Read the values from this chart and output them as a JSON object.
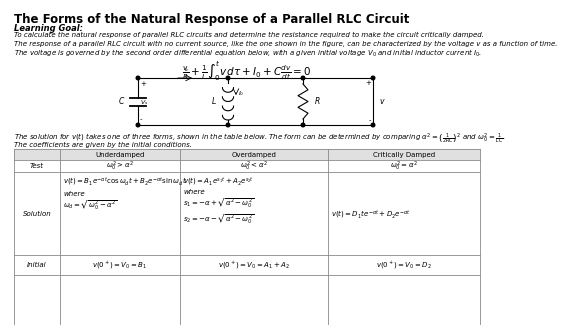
{
  "title": "The Forms of the Natural Response of a Parallel RLC Circuit",
  "learning_goal": "Learning Goal:",
  "goal_text": "To calculate the natural response of parallel RLC circuits and determine the resistance required to make the circuit critically damped.",
  "line1": "The response of a parallel RLC circuit with no current source, like the one shown in the figure, can be characterized by the voltage v as a function of time.",
  "line2": "The voltage is governed by the second order differential equation below, with a given initial voltage $V_0$ and initial inductor current $I_0$.",
  "solution_line1": "The solution for $v(t)$ takes one of three forms, shown in the table below. The form can be determined by comparing $\\alpha^2 = \\left(\\frac{1}{2RC}\\right)^2$ and $\\omega_0^2 = \\frac{1}{LC}$.",
  "coeff_text": "The coefficients are given by the initial conditions.",
  "bg_color": "#ffffff",
  "text_color": "#000000",
  "table_header_bg": "#e0e0e0",
  "table_border_color": "#888888",
  "fs_title": 8.5,
  "fs_bold": 6.0,
  "fs_body": 5.2,
  "fs_small": 5.0,
  "fs_table": 5.0,
  "fs_math": 6.5
}
